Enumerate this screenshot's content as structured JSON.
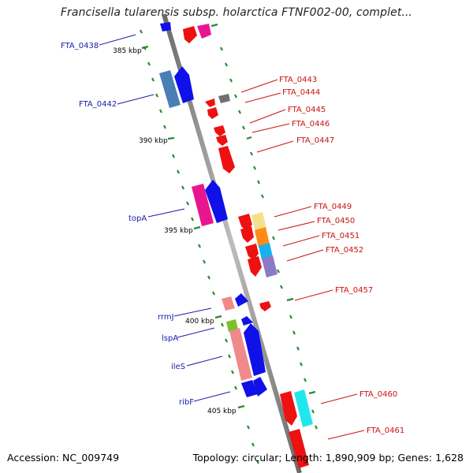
{
  "title": "Francisella tularensis subsp. holarctica FTNF002-00, complet...",
  "footer": {
    "accession": "Accession: NC_009749",
    "stats": "Topology: circular; Length: 1,890,909 bp; Genes: 1,628"
  },
  "kbp_labels": [
    "385 kbp",
    "390 kbp",
    "395 kbp",
    "400 kbp",
    "405 kbp"
  ],
  "left_genes": [
    "FTA_0438",
    "FTA_0442",
    "topA",
    "rrmJ",
    "lspA",
    "ileS",
    "ribF"
  ],
  "right_genes": [
    "FTA_0443",
    "FTA_0444",
    "FTA_0445",
    "FTA_0446",
    "FTA_0447",
    "FTA_0449",
    "FTA_0450",
    "FTA_0451",
    "FTA_0452",
    "FTA_0457",
    "FTA_0460",
    "FTA_0461"
  ],
  "colors": {
    "backbone": "#8c8c8c",
    "forward_gene": "#1010e8",
    "reverse_gene": "#ee1111",
    "tick": "#2a8a2a",
    "left_label": "#1a1aaa",
    "right_label": "#cc1111"
  }
}
